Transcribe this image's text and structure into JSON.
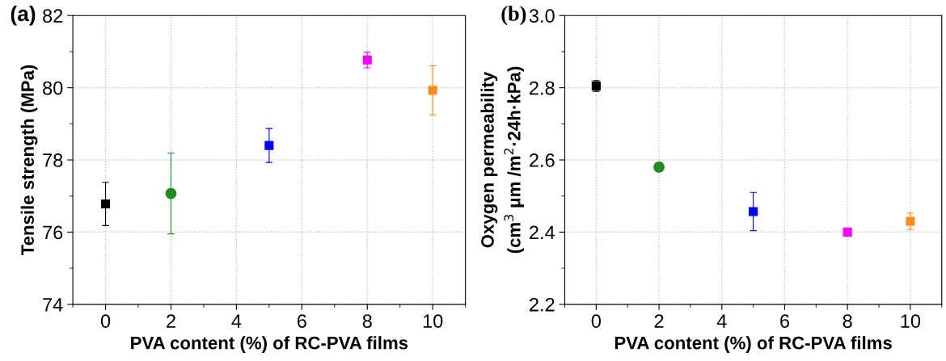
{
  "chart_data": [
    {
      "type": "scatter",
      "title": "(a)",
      "xlabel": "PVA content (%) of RC-PVA films",
      "ylabel": "Tensile strength (MPa)",
      "xlim": [
        -1,
        11
      ],
      "xticks": [
        0,
        2,
        4,
        6,
        8,
        10
      ],
      "ylim": [
        74,
        82
      ],
      "yticks": [
        74,
        76,
        78,
        80,
        82
      ],
      "grid": true,
      "series": [
        {
          "x": [
            0
          ],
          "values": [
            76.78
          ],
          "errors": [
            0.6
          ],
          "color": "#000000",
          "marker": "square"
        },
        {
          "x": [
            2
          ],
          "values": [
            77.07
          ],
          "errors": [
            1.12
          ],
          "color": "#228b22",
          "marker": "circle"
        },
        {
          "x": [
            5
          ],
          "values": [
            78.4
          ],
          "errors": [
            0.47
          ],
          "color": "#0000ff",
          "marker": "square"
        },
        {
          "x": [
            8
          ],
          "values": [
            80.77
          ],
          "errors": [
            0.22
          ],
          "color": "#ff00ff",
          "marker": "square"
        },
        {
          "x": [
            10
          ],
          "values": [
            79.93
          ],
          "errors": [
            0.68
          ],
          "color": "#ff8c1a",
          "marker": "square"
        }
      ]
    },
    {
      "type": "scatter",
      "title": "(b)",
      "xlabel": "PVA content (%) of RC-PVA films",
      "ylabel": "Oxygen permeability\n(cm$^{3}$ μm /m$^{2}$·24h·kPa)",
      "xlim": [
        -1,
        11
      ],
      "xticks": [
        0,
        2,
        4,
        6,
        8,
        10
      ],
      "ylim": [
        2.2,
        3.0
      ],
      "yticks": [
        {
          "value": 2.2,
          "label": "2.2"
        },
        {
          "value": 2.4,
          "label": "2.4"
        },
        {
          "value": 2.6,
          "label": "2.6"
        },
        {
          "value": 2.8,
          "label": "2.8"
        },
        {
          "value": 3.0,
          "label": "3.0"
        }
      ],
      "grid": true,
      "series": [
        {
          "x": [
            0
          ],
          "values": [
            2.805
          ],
          "errors": [
            0.015
          ],
          "color": "#000000",
          "marker": "square"
        },
        {
          "x": [
            2
          ],
          "values": [
            2.58
          ],
          "errors": [
            0.012
          ],
          "color": "#228b22",
          "marker": "circle"
        },
        {
          "x": [
            5
          ],
          "values": [
            2.457
          ],
          "errors": [
            0.053
          ],
          "color": "#0000ff",
          "marker": "square"
        },
        {
          "x": [
            8
          ],
          "values": [
            2.4
          ],
          "errors": [
            0.005
          ],
          "color": "#ff00ff",
          "marker": "square"
        },
        {
          "x": [
            10
          ],
          "values": [
            2.43
          ],
          "errors": [
            0.023
          ],
          "color": "#ff8c1a",
          "marker": "square"
        }
      ]
    }
  ]
}
